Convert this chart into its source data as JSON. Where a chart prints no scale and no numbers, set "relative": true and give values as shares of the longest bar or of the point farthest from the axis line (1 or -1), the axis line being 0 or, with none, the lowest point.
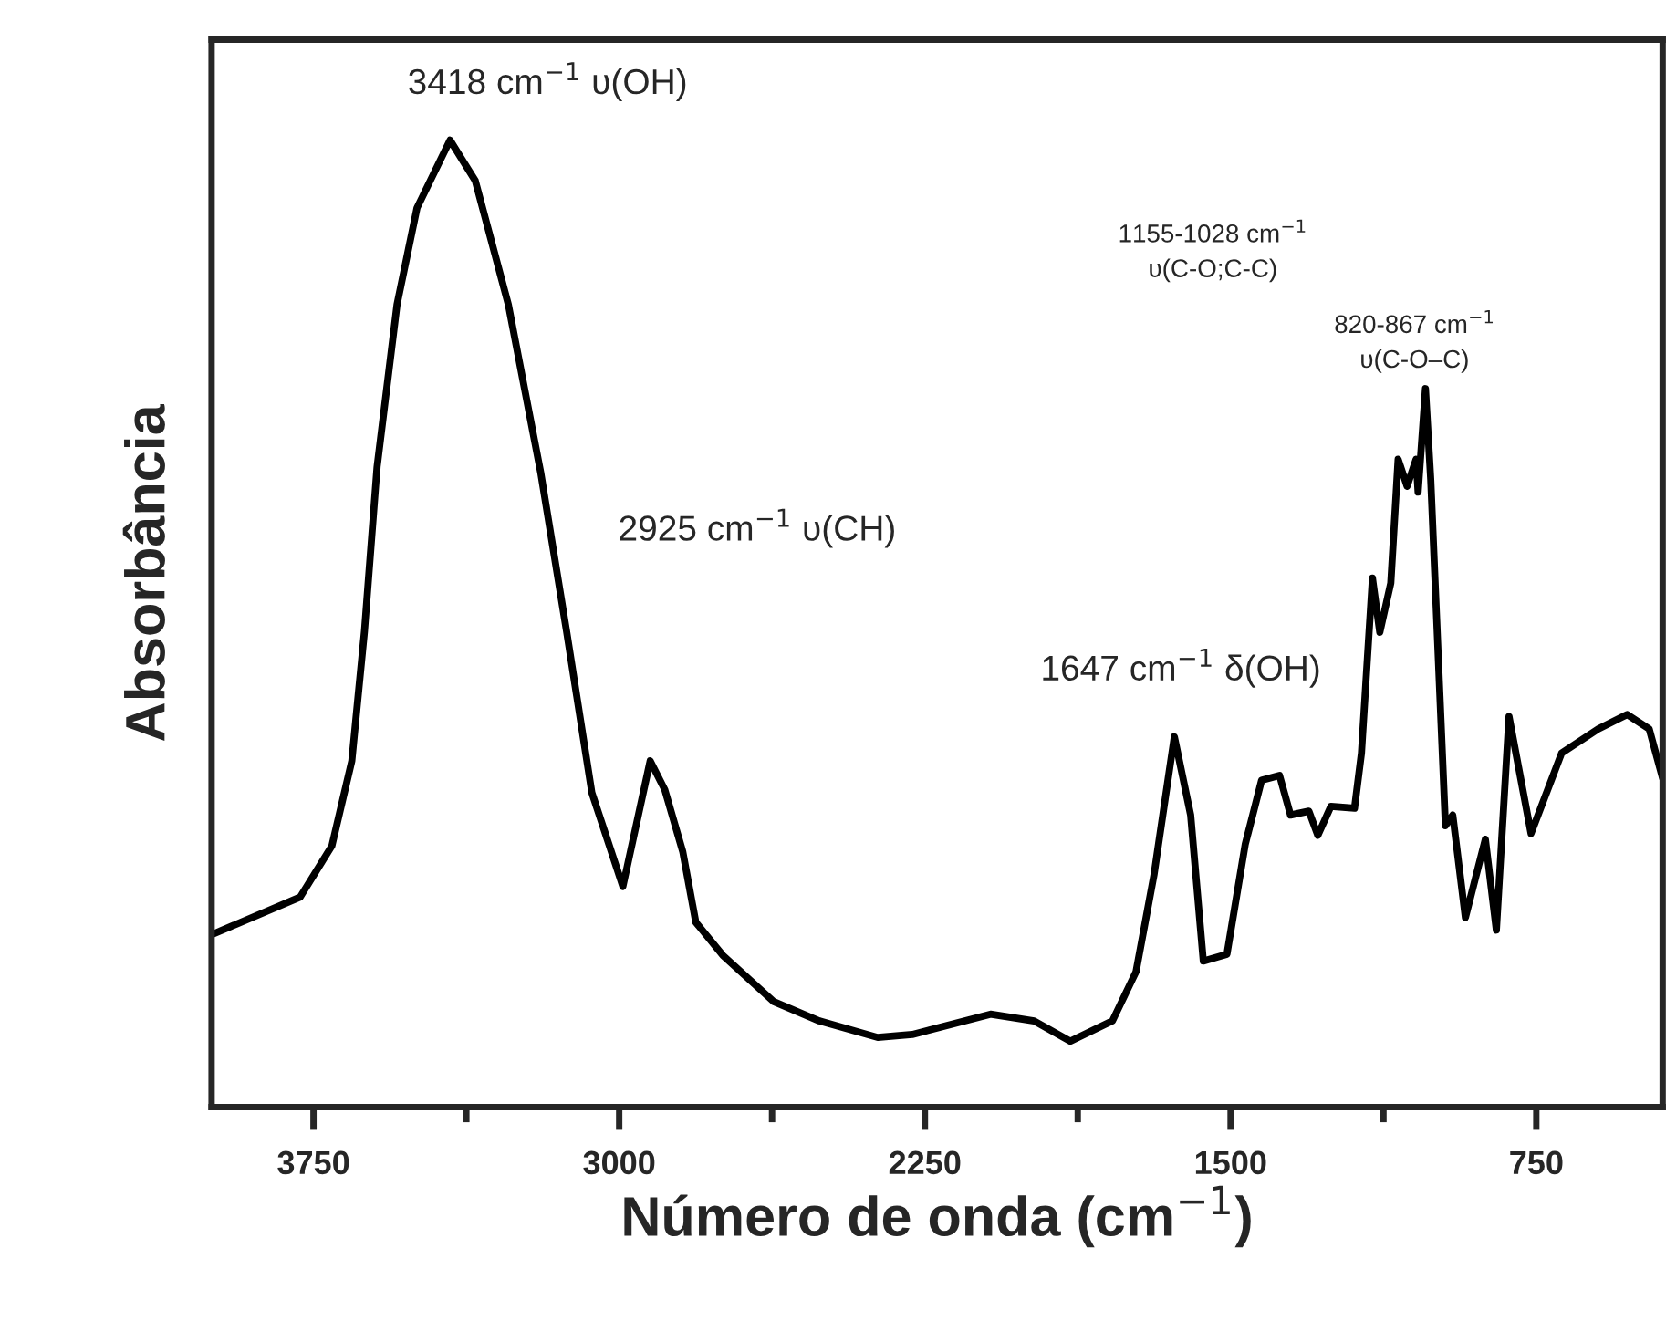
{
  "chart_data": {
    "type": "line",
    "relative": true,
    "xlabel": "Número de onda (cm$^{−1}$)",
    "ylabel": "Absorbância",
    "xlim": [
      4000,
      440
    ],
    "xticks": [
      3750,
      {
        "value": 3375,
        "label": null
      },
      3000,
      {
        "value": 2625,
        "label": null
      },
      2250,
      {
        "value": 1875,
        "label": null
      },
      1500,
      {
        "value": 1125,
        "label": null
      },
      750
    ],
    "tick_labels": "x",
    "grid": false,
    "marker": "none",
    "line_style": "solid",
    "annotations": [
      {
        "text": "3418 cm$^{−1}$ υ(OH)",
        "x": 3418,
        "y": 1.0
      },
      "2925 cm$^{−1}$ υ(CH)",
      {
        "text": "1647 cm$^{−1}$ δ(OH)",
        "x": 1647,
        "y": 0.383
      },
      "1155-1028 cm$^{−1}$\nυ(C-O;C-C)",
      "820-867 cm$^{−1}$\nυ(C-O–C)"
    ],
    "series": [
      {
        "color": "#000000",
        "x": [
          3996,
          3783,
          3705,
          3656,
          3625,
          3594,
          3545,
          3496,
          3415,
          3353,
          3272,
          3192,
          3129,
          3067,
          2991,
          2924,
          2888,
          2844,
          2812,
          2746,
          2621,
          2509,
          2366,
          2281,
          2089,
          1982,
          1893,
          1790,
          1732,
          1688,
          1638,
          1598,
          1567,
          1509,
          1464,
          1424,
          1380,
          1353,
          1308,
          1286,
          1254,
          1196,
          1179,
          1152,
          1134,
          1107,
          1089,
          1067,
          1045,
          1040,
          1022,
          1009,
          973,
          955,
          924,
          875,
          848,
          817,
          763,
          688,
          598,
          527,
          473,
          440
        ],
        "values": [
          0.179,
          0.217,
          0.27,
          0.358,
          0.492,
          0.662,
          0.83,
          0.93,
          1.0,
          0.958,
          0.83,
          0.655,
          0.492,
          0.325,
          0.228,
          0.358,
          0.328,
          0.264,
          0.191,
          0.157,
          0.109,
          0.089,
          0.072,
          0.075,
          0.096,
          0.089,
          0.068,
          0.089,
          0.14,
          0.24,
          0.383,
          0.302,
          0.151,
          0.158,
          0.272,
          0.338,
          0.343,
          0.302,
          0.306,
          0.281,
          0.311,
          0.309,
          0.366,
          0.547,
          0.491,
          0.542,
          0.67,
          0.642,
          0.67,
          0.636,
          0.743,
          0.649,
          0.291,
          0.302,
          0.196,
          0.277,
          0.183,
          0.404,
          0.283,
          0.366,
          0.391,
          0.406,
          0.391,
          0.34
        ]
      }
    ]
  }
}
